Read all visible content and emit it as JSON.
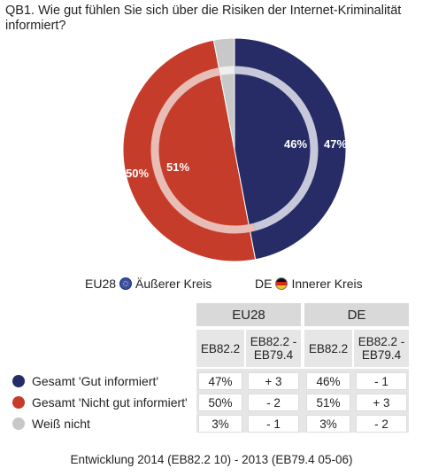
{
  "title_lines": [
    "QB1. Wie gut fühlen Sie sich über die Risiken der Internet-Kriminalität",
    "informiert?"
  ],
  "chart_data": {
    "type": "pie",
    "title": "QB1. Wie gut fühlen Sie sich über die Risiken der Internet-Kriminalität informiert?",
    "categories": [
      "Gesamt 'Gut informiert'",
      "Gesamt 'Nicht gut informiert'",
      "Weiß nicht"
    ],
    "series": [
      {
        "name": "EU28",
        "ring": "outer",
        "values": [
          47,
          50,
          3
        ],
        "labels": [
          "47%",
          "50%",
          ""
        ]
      },
      {
        "name": "DE",
        "ring": "inner",
        "values": [
          46,
          51,
          3
        ],
        "labels": [
          "46%",
          "51%",
          ""
        ]
      }
    ],
    "colors": [
      "#272c66",
      "#c63c2b",
      "#c8c8c8"
    ]
  },
  "legend": {
    "eu_label": "EU28",
    "eu_desc": "Äußerer Kreis",
    "de_label": "DE",
    "de_desc": "Innerer Kreis"
  },
  "table": {
    "groups": [
      "EU28",
      "DE"
    ],
    "subheaders": [
      "EB82.2",
      "EB82.2 - EB79.4",
      "EB82.2",
      "EB82.2 - EB79.4"
    ],
    "rows": [
      {
        "label": "Gesamt 'Gut informiert'",
        "color": "#272c66",
        "values": [
          "47%",
          "+ 3",
          "46%",
          "- 1"
        ]
      },
      {
        "label": "Gesamt 'Nicht gut informiert'",
        "color": "#c63c2b",
        "values": [
          "50%",
          "- 2",
          "51%",
          "+ 3"
        ]
      },
      {
        "label": "Weiß nicht",
        "color": "#c8c8c8",
        "values": [
          "3%",
          "- 1",
          "3%",
          "- 2"
        ]
      }
    ]
  },
  "footer": "Entwicklung 2014 (EB82.2 10) - 2013 (EB79.4 05-06)"
}
